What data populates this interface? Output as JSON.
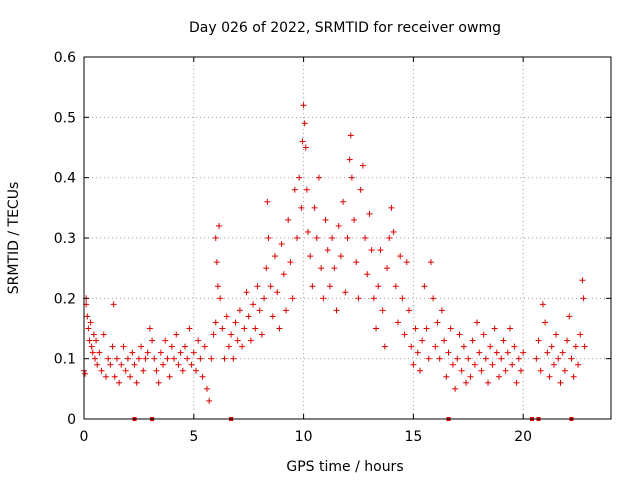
{
  "chart_data": {
    "type": "scatter",
    "title": "Day 026 of 2022, SRMTID for receiver owmg",
    "xlabel": "GPS time / hours",
    "ylabel": "SRMTID / TECUs",
    "xlim": [
      0,
      24
    ],
    "ylim": [
      0,
      0.6
    ],
    "xticks": [
      0,
      5,
      10,
      15,
      20
    ],
    "yticks": [
      0,
      0.1,
      0.2,
      0.3,
      0.4,
      0.5,
      0.6
    ],
    "xtick_labels": [
      "0",
      "5",
      "10",
      "15",
      "20"
    ],
    "ytick_labels": [
      "0",
      "0.1",
      "0.2",
      "0.3",
      "0.4",
      "0.5",
      "0.6"
    ],
    "grid": true,
    "marker": "+",
    "color": "#e00000",
    "series": [
      {
        "name": "SRMTID",
        "points": [
          [
            0.0,
            0.08
          ],
          [
            0.05,
            0.075
          ],
          [
            0.1,
            0.2
          ],
          [
            0.1,
            0.19
          ],
          [
            0.15,
            0.17
          ],
          [
            0.2,
            0.15
          ],
          [
            0.25,
            0.13
          ],
          [
            0.3,
            0.16
          ],
          [
            0.35,
            0.12
          ],
          [
            0.4,
            0.11
          ],
          [
            0.45,
            0.14
          ],
          [
            0.5,
            0.1
          ],
          [
            0.55,
            0.13
          ],
          [
            0.6,
            0.09
          ],
          [
            0.7,
            0.11
          ],
          [
            0.8,
            0.08
          ],
          [
            0.9,
            0.14
          ],
          [
            1.0,
            0.07
          ],
          [
            1.1,
            0.1
          ],
          [
            1.2,
            0.09
          ],
          [
            1.3,
            0.12
          ],
          [
            1.35,
            0.19
          ],
          [
            1.4,
            0.07
          ],
          [
            1.5,
            0.1
          ],
          [
            1.6,
            0.06
          ],
          [
            1.7,
            0.09
          ],
          [
            1.8,
            0.12
          ],
          [
            1.9,
            0.08
          ],
          [
            2.0,
            0.1
          ],
          [
            2.1,
            0.07
          ],
          [
            2.2,
            0.11
          ],
          [
            2.3,
            0.09
          ],
          [
            2.4,
            0.06
          ],
          [
            2.5,
            0.1
          ],
          [
            2.6,
            0.12
          ],
          [
            2.7,
            0.08
          ],
          [
            2.8,
            0.1
          ],
          [
            2.9,
            0.11
          ],
          [
            3.0,
            0.15
          ],
          [
            3.1,
            0.13
          ],
          [
            3.2,
            0.1
          ],
          [
            3.3,
            0.08
          ],
          [
            3.4,
            0.06
          ],
          [
            3.5,
            0.11
          ],
          [
            3.6,
            0.09
          ],
          [
            3.7,
            0.13
          ],
          [
            3.8,
            0.1
          ],
          [
            3.9,
            0.07
          ],
          [
            4.0,
            0.12
          ],
          [
            4.1,
            0.1
          ],
          [
            4.2,
            0.14
          ],
          [
            4.3,
            0.09
          ],
          [
            4.4,
            0.11
          ],
          [
            4.5,
            0.08
          ],
          [
            4.6,
            0.12
          ],
          [
            4.7,
            0.1
          ],
          [
            4.8,
            0.15
          ],
          [
            4.9,
            0.09
          ],
          [
            5.0,
            0.11
          ],
          [
            5.1,
            0.08
          ],
          [
            5.2,
            0.13
          ],
          [
            5.3,
            0.1
          ],
          [
            5.4,
            0.07
          ],
          [
            5.5,
            0.12
          ],
          [
            5.6,
            0.05
          ],
          [
            5.7,
            0.03
          ],
          [
            5.8,
            0.1
          ],
          [
            5.9,
            0.14
          ],
          [
            6.0,
            0.16
          ],
          [
            6.0,
            0.3
          ],
          [
            6.05,
            0.26
          ],
          [
            6.1,
            0.22
          ],
          [
            6.15,
            0.32
          ],
          [
            6.2,
            0.2
          ],
          [
            6.3,
            0.15
          ],
          [
            6.4,
            0.1
          ],
          [
            6.5,
            0.17
          ],
          [
            6.6,
            0.12
          ],
          [
            6.7,
            0.14
          ],
          [
            6.8,
            0.1
          ],
          [
            6.9,
            0.16
          ],
          [
            7.0,
            0.13
          ],
          [
            7.1,
            0.18
          ],
          [
            7.2,
            0.12
          ],
          [
            7.3,
            0.15
          ],
          [
            7.4,
            0.21
          ],
          [
            7.5,
            0.17
          ],
          [
            7.6,
            0.13
          ],
          [
            7.7,
            0.19
          ],
          [
            7.8,
            0.15
          ],
          [
            7.9,
            0.22
          ],
          [
            8.0,
            0.18
          ],
          [
            8.1,
            0.14
          ],
          [
            8.2,
            0.2
          ],
          [
            8.3,
            0.25
          ],
          [
            8.35,
            0.36
          ],
          [
            8.4,
            0.3
          ],
          [
            8.5,
            0.22
          ],
          [
            8.6,
            0.17
          ],
          [
            8.7,
            0.27
          ],
          [
            8.8,
            0.21
          ],
          [
            8.9,
            0.15
          ],
          [
            9.0,
            0.29
          ],
          [
            9.1,
            0.24
          ],
          [
            9.2,
            0.18
          ],
          [
            9.3,
            0.33
          ],
          [
            9.4,
            0.26
          ],
          [
            9.5,
            0.2
          ],
          [
            9.6,
            0.38
          ],
          [
            9.7,
            0.3
          ],
          [
            9.8,
            0.4
          ],
          [
            9.9,
            0.35
          ],
          [
            9.95,
            0.46
          ],
          [
            10.0,
            0.52
          ],
          [
            10.05,
            0.49
          ],
          [
            10.1,
            0.45
          ],
          [
            10.15,
            0.38
          ],
          [
            10.2,
            0.31
          ],
          [
            10.3,
            0.27
          ],
          [
            10.4,
            0.22
          ],
          [
            10.5,
            0.35
          ],
          [
            10.6,
            0.3
          ],
          [
            10.7,
            0.4
          ],
          [
            10.8,
            0.25
          ],
          [
            10.9,
            0.2
          ],
          [
            11.0,
            0.33
          ],
          [
            11.1,
            0.28
          ],
          [
            11.2,
            0.22
          ],
          [
            11.3,
            0.3
          ],
          [
            11.4,
            0.25
          ],
          [
            11.5,
            0.18
          ],
          [
            11.6,
            0.32
          ],
          [
            11.7,
            0.27
          ],
          [
            11.8,
            0.36
          ],
          [
            11.9,
            0.21
          ],
          [
            12.0,
            0.3
          ],
          [
            12.1,
            0.43
          ],
          [
            12.15,
            0.47
          ],
          [
            12.2,
            0.4
          ],
          [
            12.3,
            0.33
          ],
          [
            12.4,
            0.26
          ],
          [
            12.5,
            0.2
          ],
          [
            12.6,
            0.38
          ],
          [
            12.7,
            0.42
          ],
          [
            12.8,
            0.3
          ],
          [
            12.9,
            0.24
          ],
          [
            13.0,
            0.34
          ],
          [
            13.1,
            0.28
          ],
          [
            13.2,
            0.2
          ],
          [
            13.3,
            0.15
          ],
          [
            13.4,
            0.22
          ],
          [
            13.5,
            0.28
          ],
          [
            13.6,
            0.18
          ],
          [
            13.7,
            0.12
          ],
          [
            13.8,
            0.25
          ],
          [
            13.9,
            0.3
          ],
          [
            14.0,
            0.35
          ],
          [
            14.1,
            0.31
          ],
          [
            14.2,
            0.22
          ],
          [
            14.3,
            0.16
          ],
          [
            14.4,
            0.27
          ],
          [
            14.5,
            0.2
          ],
          [
            14.6,
            0.14
          ],
          [
            14.7,
            0.26
          ],
          [
            14.8,
            0.18
          ],
          [
            14.9,
            0.12
          ],
          [
            15.0,
            0.09
          ],
          [
            15.1,
            0.15
          ],
          [
            15.2,
            0.11
          ],
          [
            15.3,
            0.08
          ],
          [
            15.4,
            0.13
          ],
          [
            15.5,
            0.22
          ],
          [
            15.6,
            0.15
          ],
          [
            15.7,
            0.1
          ],
          [
            15.8,
            0.26
          ],
          [
            15.9,
            0.2
          ],
          [
            16.0,
            0.12
          ],
          [
            16.1,
            0.16
          ],
          [
            16.2,
            0.1
          ],
          [
            16.3,
            0.18
          ],
          [
            16.4,
            0.13
          ],
          [
            16.5,
            0.07
          ],
          [
            16.6,
            0.11
          ],
          [
            16.7,
            0.15
          ],
          [
            16.8,
            0.09
          ],
          [
            16.9,
            0.05
          ],
          [
            17.0,
            0.1
          ],
          [
            17.1,
            0.14
          ],
          [
            17.2,
            0.08
          ],
          [
            17.3,
            0.12
          ],
          [
            17.4,
            0.06
          ],
          [
            17.5,
            0.1
          ],
          [
            17.6,
            0.07
          ],
          [
            17.7,
            0.13
          ],
          [
            17.8,
            0.09
          ],
          [
            17.9,
            0.16
          ],
          [
            18.0,
            0.11
          ],
          [
            18.1,
            0.08
          ],
          [
            18.2,
            0.14
          ],
          [
            18.3,
            0.1
          ],
          [
            18.4,
            0.06
          ],
          [
            18.5,
            0.12
          ],
          [
            18.6,
            0.09
          ],
          [
            18.7,
            0.15
          ],
          [
            18.8,
            0.11
          ],
          [
            18.9,
            0.07
          ],
          [
            19.0,
            0.1
          ],
          [
            19.1,
            0.13
          ],
          [
            19.2,
            0.08
          ],
          [
            19.3,
            0.11
          ],
          [
            19.4,
            0.15
          ],
          [
            19.5,
            0.09
          ],
          [
            19.6,
            0.12
          ],
          [
            19.7,
            0.06
          ],
          [
            19.8,
            0.1
          ],
          [
            19.9,
            0.08
          ],
          [
            20.0,
            0.11
          ],
          [
            20.6,
            0.1
          ],
          [
            20.7,
            0.13
          ],
          [
            20.8,
            0.08
          ],
          [
            20.9,
            0.19
          ],
          [
            21.0,
            0.16
          ],
          [
            21.1,
            0.11
          ],
          [
            21.2,
            0.07
          ],
          [
            21.3,
            0.12
          ],
          [
            21.4,
            0.09
          ],
          [
            21.5,
            0.14
          ],
          [
            21.6,
            0.1
          ],
          [
            21.7,
            0.06
          ],
          [
            21.8,
            0.11
          ],
          [
            21.9,
            0.08
          ],
          [
            22.0,
            0.13
          ],
          [
            22.1,
            0.17
          ],
          [
            22.2,
            0.1
          ],
          [
            22.3,
            0.07
          ],
          [
            22.4,
            0.12
          ],
          [
            22.5,
            0.09
          ],
          [
            22.6,
            0.14
          ],
          [
            22.7,
            0.23
          ],
          [
            22.75,
            0.2
          ],
          [
            22.8,
            0.12
          ]
        ]
      }
    ],
    "gap_markers_x": [
      2.3,
      3.1,
      6.7,
      16.6,
      20.4,
      20.7,
      22.2
    ]
  }
}
